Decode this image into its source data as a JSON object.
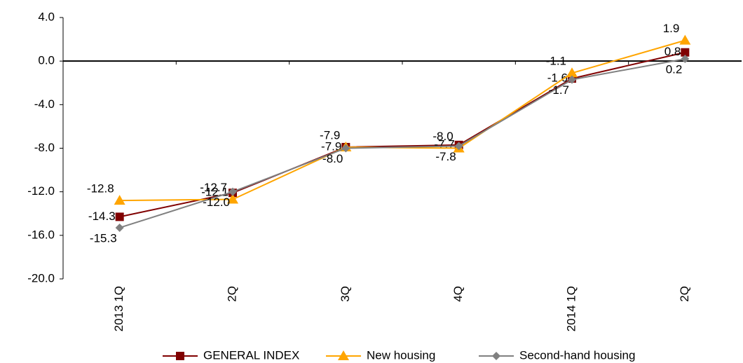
{
  "chart_data": {
    "type": "line",
    "categories": [
      "2013 1Q",
      "2Q",
      "3Q",
      "4Q",
      "2014 1Q",
      "2Q"
    ],
    "series": [
      {
        "name": "GENERAL INDEX",
        "color": "#800000",
        "marker": "square",
        "values": [
          -14.3,
          -12.1,
          -7.9,
          -7.7,
          -1.6,
          0.8
        ],
        "value_labels": [
          "-14.3",
          "-12.1",
          "-7.9",
          "-7.7",
          "-1.6",
          "0.8"
        ]
      },
      {
        "name": "New housing",
        "color": "#FFA500",
        "marker": "triangle",
        "values": [
          -12.8,
          -12.7,
          -7.9,
          -8.0,
          -1.1,
          1.9
        ],
        "value_labels": [
          "-12.8",
          "-12.7",
          "-7.9",
          "-8.0",
          "-1.1",
          "1.9"
        ]
      },
      {
        "name": "Second-hand housing",
        "color": "#808080",
        "marker": "diamond",
        "values": [
          -15.3,
          -12.0,
          -8.0,
          -7.8,
          -1.7,
          0.2
        ],
        "value_labels": [
          "-15.3",
          "-12.0",
          "-8.0",
          "-7.8",
          "-1.7",
          "0.2"
        ]
      }
    ],
    "ylim": [
      -20,
      4
    ],
    "yticks": [
      {
        "value": -20,
        "label": "-20.0"
      },
      {
        "value": -16,
        "label": "-16.0"
      },
      {
        "value": -12,
        "label": "-12.0"
      },
      {
        "value": -8,
        "label": "-8.0"
      },
      {
        "value": -4,
        "label": "-4.0"
      },
      {
        "value": 0,
        "label": "0.0"
      },
      {
        "value": 4,
        "label": "4.0"
      }
    ],
    "grid": false,
    "legend": "bottom"
  }
}
